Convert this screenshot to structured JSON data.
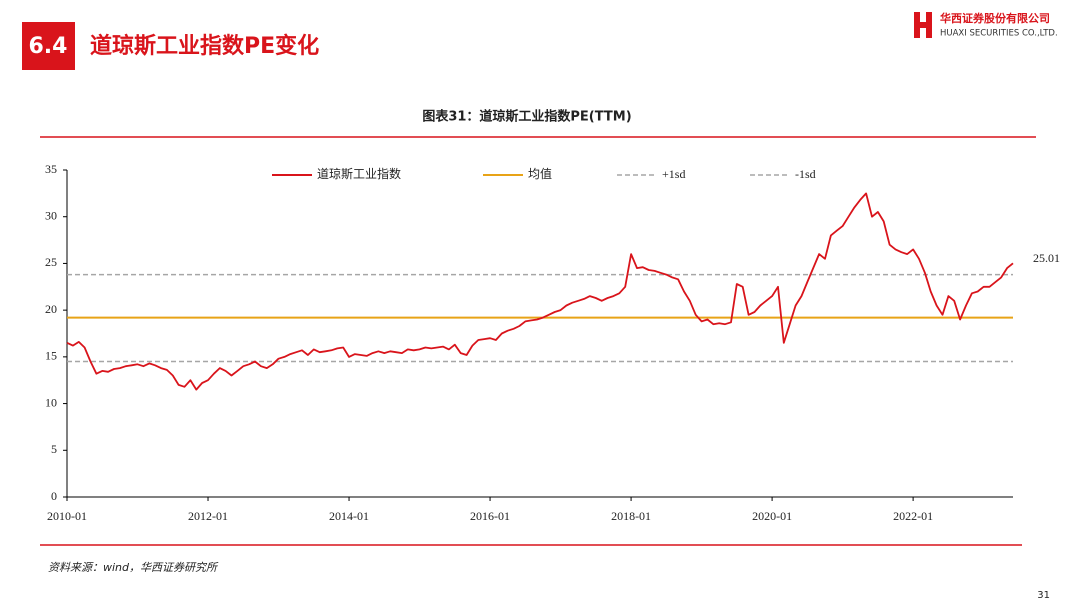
{
  "header": {
    "section": "6.4",
    "title": "道琼斯工业指数PE变化",
    "company_cn": "华西证券股份有限公司",
    "company_en": "HUAXI SECURITIES CO.,LTD."
  },
  "chart_data": {
    "type": "line",
    "title": "图表31：道琼斯工业指数PE(TTM)",
    "categories": [
      "2010-01",
      null,
      null,
      null,
      null,
      null,
      null,
      null,
      null,
      null,
      null,
      null,
      null,
      null,
      null,
      null,
      null,
      null,
      null,
      null,
      null,
      null,
      null,
      null,
      "2012-01",
      null,
      null,
      null,
      null,
      null,
      null,
      null,
      null,
      null,
      null,
      null,
      null,
      null,
      null,
      null,
      null,
      null,
      null,
      null,
      null,
      null,
      null,
      null,
      "2014-01",
      null,
      null,
      null,
      null,
      null,
      null,
      null,
      null,
      null,
      null,
      null,
      null,
      null,
      null,
      null,
      null,
      null,
      null,
      null,
      null,
      null,
      null,
      null,
      "2016-01",
      null,
      null,
      null,
      null,
      null,
      null,
      null,
      null,
      null,
      null,
      null,
      null,
      null,
      null,
      null,
      null,
      null,
      null,
      null,
      null,
      null,
      null,
      null,
      "2018-01",
      null,
      null,
      null,
      null,
      null,
      null,
      null,
      null,
      null,
      null,
      null,
      null,
      null,
      null,
      null,
      null,
      null,
      null,
      null,
      null,
      null,
      null,
      null,
      "2020-01",
      null,
      null,
      null,
      null,
      null,
      null,
      null,
      null,
      null,
      null,
      null,
      null,
      null,
      null,
      null,
      null,
      null,
      null,
      null,
      null,
      null,
      null,
      null,
      "2022-01",
      null,
      null,
      null,
      null,
      null,
      null,
      null,
      null,
      null,
      null,
      null,
      null,
      null,
      null,
      null,
      null,
      null
    ],
    "series": [
      {
        "name": "道琼斯工业指数",
        "color": "#d9141b",
        "values": [
          16.5,
          16.2,
          16.6,
          16.0,
          14.5,
          13.2,
          13.5,
          13.4,
          13.7,
          13.8,
          14.0,
          14.1,
          14.2,
          14.0,
          14.3,
          14.1,
          13.8,
          13.6,
          13.0,
          12.0,
          11.8,
          12.5,
          11.5,
          12.2,
          12.5,
          13.2,
          13.8,
          13.5,
          13.0,
          13.5,
          14.0,
          14.2,
          14.5,
          14.0,
          13.8,
          14.2,
          14.8,
          15.0,
          15.3,
          15.5,
          15.7,
          15.2,
          15.8,
          15.5,
          15.6,
          15.7,
          15.9,
          16.0,
          15.0,
          15.3,
          15.2,
          15.1,
          15.4,
          15.6,
          15.4,
          15.6,
          15.5,
          15.4,
          15.8,
          15.7,
          15.8,
          16.0,
          15.9,
          16.0,
          16.1,
          15.8,
          16.3,
          15.4,
          15.2,
          16.2,
          16.8,
          16.9,
          17.0,
          16.8,
          17.5,
          17.8,
          18.0,
          18.3,
          18.8,
          18.9,
          19.0,
          19.2,
          19.5,
          19.8,
          20.0,
          20.5,
          20.8,
          21.0,
          21.2,
          21.5,
          21.3,
          21.0,
          21.3,
          21.5,
          21.8,
          22.5,
          26.0,
          24.5,
          24.6,
          24.3,
          24.2,
          24.0,
          23.8,
          23.5,
          23.3,
          22.0,
          21.0,
          19.5,
          18.8,
          19.0,
          18.5,
          18.6,
          18.5,
          18.7,
          22.8,
          22.5,
          19.5,
          19.8,
          20.5,
          21.0,
          21.5,
          22.5,
          16.5,
          18.5,
          20.5,
          21.5,
          23.0,
          24.5,
          26.0,
          25.5,
          28.0,
          28.5,
          29.0,
          30.0,
          31.0,
          31.8,
          32.5,
          30.0,
          30.5,
          29.5,
          27.0,
          26.5,
          26.2,
          26.0,
          26.5,
          25.5,
          24.0,
          22.0,
          20.5,
          19.5,
          21.5,
          21.0,
          19.0,
          20.5,
          21.8,
          22.0,
          22.5,
          22.5,
          23.0,
          23.5,
          24.5,
          25.01
        ]
      }
    ],
    "reference_lines": [
      {
        "name": "均值",
        "value": 19.2,
        "color": "#e8a317",
        "dashed": false
      },
      {
        "name": "+1sd",
        "value": 23.8,
        "color": "#a6a6a6",
        "dashed": true
      },
      {
        "name": "-1sd",
        "value": 14.5,
        "color": "#a6a6a6",
        "dashed": true
      }
    ],
    "ylim": [
      0,
      35
    ],
    "yticks": [
      0,
      5,
      10,
      15,
      20,
      25,
      30,
      35
    ],
    "grid": false
  },
  "footer": {
    "source": "资料来源：wind，华西证券研究所",
    "page": "31"
  }
}
